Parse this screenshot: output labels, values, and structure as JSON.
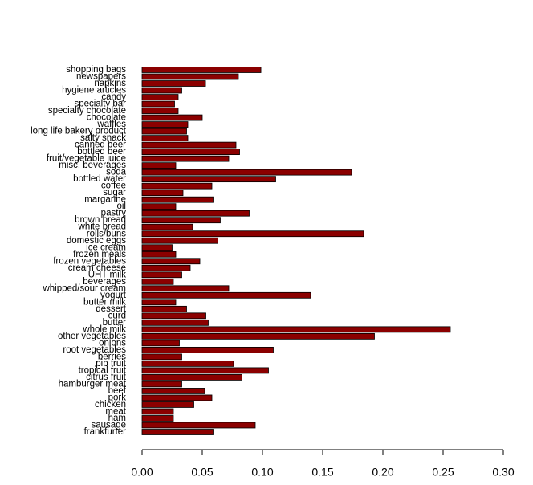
{
  "chart_data": {
    "type": "hbar",
    "color": "#8b0000",
    "edge_color": "#000000",
    "categories": [
      "shopping bags",
      "newspapers",
      "napkins",
      "hygiene articles",
      "candy",
      "specialty bar",
      "specialty chocolate",
      "chocolate",
      "waffles",
      "long life bakery product",
      "salty snack",
      "canned beer",
      "bottled beer",
      "fruit/vegetable juice",
      "misc. beverages",
      "soda",
      "bottled water",
      "coffee",
      "sugar",
      "margarine",
      "oil",
      "pastry",
      "brown bread",
      "white bread",
      "rolls/buns",
      "domestic eggs",
      "ice cream",
      "frozen meals",
      "frozen vegetables",
      "cream cheese",
      "UHT-milk",
      "beverages",
      "whipped/sour cream",
      "yogurt",
      "butter milk",
      "dessert",
      "curd",
      "butter",
      "whole milk",
      "other vegetables",
      "onions",
      "root vegetables",
      "berries",
      "pip fruit",
      "tropical fruit",
      "citrus fruit",
      "hamburger meat",
      "beef",
      "pork",
      "chicken",
      "meat",
      "ham",
      "sausage",
      "frankfurter"
    ],
    "values": [
      0.0987,
      0.08,
      0.0527,
      0.033,
      0.03,
      0.027,
      0.03,
      0.05,
      0.038,
      0.037,
      0.038,
      0.078,
      0.081,
      0.072,
      0.028,
      0.174,
      0.111,
      0.058,
      0.034,
      0.059,
      0.028,
      0.089,
      0.065,
      0.042,
      0.184,
      0.063,
      0.025,
      0.028,
      0.048,
      0.04,
      0.033,
      0.026,
      0.072,
      0.14,
      0.028,
      0.037,
      0.053,
      0.055,
      0.256,
      0.193,
      0.031,
      0.109,
      0.033,
      0.076,
      0.105,
      0.083,
      0.033,
      0.052,
      0.058,
      0.043,
      0.026,
      0.026,
      0.094,
      0.059
    ],
    "xlim": [
      0,
      0.3
    ],
    "xticks": [
      {
        "value": 0,
        "label": "0.00"
      },
      {
        "value": 0.05,
        "label": "0.05"
      },
      {
        "value": 0.1,
        "label": "0.10"
      },
      {
        "value": 0.15,
        "label": "0.15"
      },
      {
        "value": 0.2,
        "label": "0.20"
      },
      {
        "value": 0.25,
        "label": "0.25"
      },
      {
        "value": 0.3,
        "label": "0.30"
      }
    ]
  }
}
